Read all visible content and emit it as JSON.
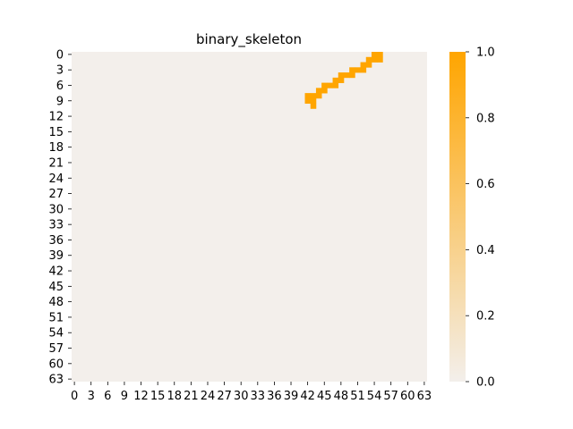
{
  "chart_data": {
    "type": "heatmap",
    "title": "binary_skeleton",
    "xlabel": "",
    "ylabel": "",
    "rows": 64,
    "cols": 64,
    "x_tick_labels": [
      "0",
      "3",
      "6",
      "9",
      "12",
      "15",
      "18",
      "21",
      "24",
      "27",
      "30",
      "33",
      "36",
      "39",
      "42",
      "45",
      "48",
      "51",
      "54",
      "57",
      "60",
      "63"
    ],
    "y_tick_labels": [
      "0",
      "3",
      "6",
      "9",
      "12",
      "15",
      "18",
      "21",
      "24",
      "27",
      "30",
      "33",
      "36",
      "39",
      "42",
      "45",
      "48",
      "51",
      "54",
      "57",
      "60",
      "63"
    ],
    "value_range": [
      0,
      1
    ],
    "colorbar_ticks": [
      "0.0",
      "0.2",
      "0.4",
      "0.6",
      "0.8",
      "1.0"
    ],
    "colormap": {
      "low": "#f3efeb",
      "high": "#ffa500"
    },
    "background_value": 0,
    "ones": [
      [
        0,
        54
      ],
      [
        0,
        55
      ],
      [
        1,
        53
      ],
      [
        1,
        54
      ],
      [
        1,
        55
      ],
      [
        2,
        52
      ],
      [
        2,
        53
      ],
      [
        3,
        50
      ],
      [
        3,
        51
      ],
      [
        3,
        52
      ],
      [
        4,
        48
      ],
      [
        4,
        49
      ],
      [
        4,
        50
      ],
      [
        5,
        47
      ],
      [
        5,
        48
      ],
      [
        6,
        45
      ],
      [
        6,
        46
      ],
      [
        6,
        47
      ],
      [
        7,
        44
      ],
      [
        7,
        45
      ],
      [
        8,
        42
      ],
      [
        8,
        43
      ],
      [
        8,
        44
      ],
      [
        9,
        42
      ],
      [
        9,
        43
      ],
      [
        10,
        43
      ]
    ]
  }
}
